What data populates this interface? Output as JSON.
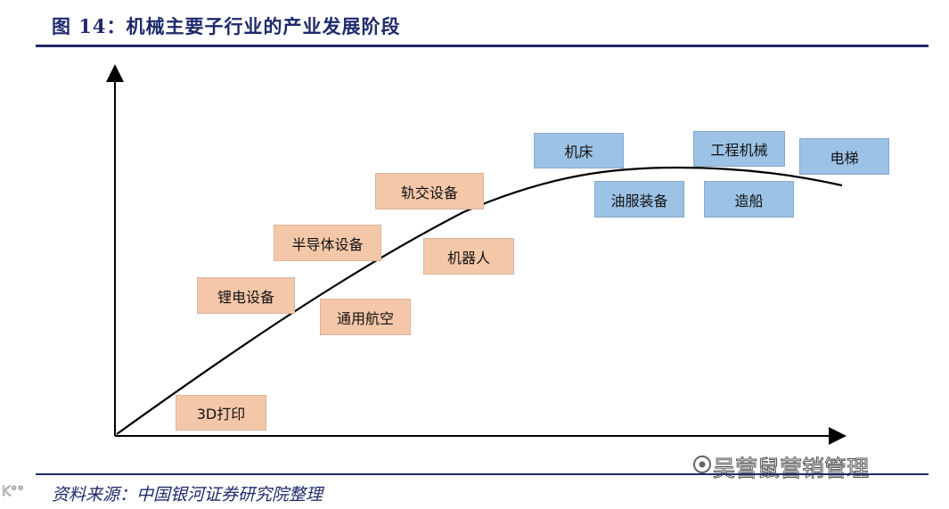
{
  "figure": {
    "title": "图 14：机械主要子行业的产业发展阶段",
    "source": "资料来源：中国银河证券研究院整理",
    "watermark": "吴营鼠营销管理"
  },
  "colors": {
    "title": "#1f2a6b",
    "emerging_box": "#f5c7a9",
    "mature_box": "#9cc2e5",
    "curve": "#000000"
  },
  "icons": {
    "watermark": "wechat-official-account-icon"
  },
  "stages": {
    "emerging": [
      "3D打印",
      "锂电设备",
      "通用航空",
      "半导体设备",
      "机器人",
      "轨交设备"
    ],
    "mature": [
      "机床",
      "油服装备",
      "工程机械",
      "造船",
      "电梯"
    ]
  }
}
